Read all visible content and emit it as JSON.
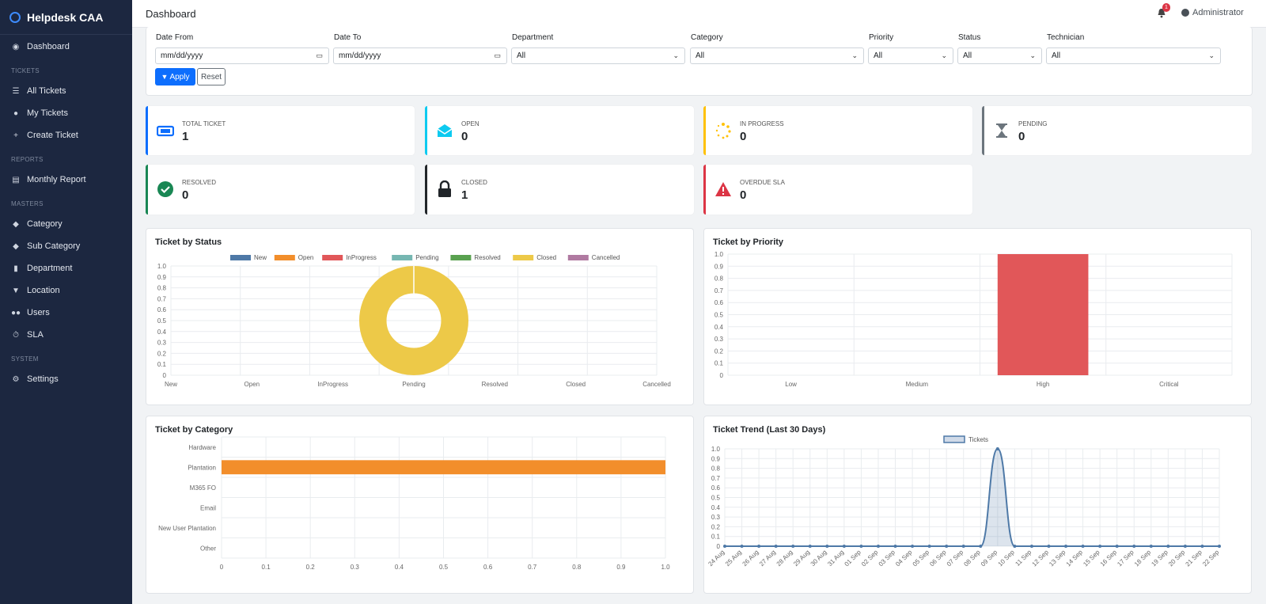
{
  "app": {
    "brand": "Helpdesk CAA"
  },
  "sidebar": {
    "dashboard": "Dashboard",
    "sections": {
      "tickets": "TICKETS",
      "reports": "REPORTS",
      "masters": "MASTERS",
      "system": "SYSTEM"
    },
    "items": {
      "all_tickets": "All Tickets",
      "my_tickets": "My Tickets",
      "create_ticket": "Create Ticket",
      "monthly_report": "Monthly Report",
      "category": "Category",
      "sub_category": "Sub Category",
      "department": "Department",
      "location": "Location",
      "users": "Users",
      "sla": "SLA",
      "settings": "Settings"
    }
  },
  "header": {
    "title": "Dashboard",
    "notif_count": "1",
    "user": "Administrator"
  },
  "filters": {
    "date_from": {
      "label": "Date From",
      "value": "mm/dd/yyyy"
    },
    "date_to": {
      "label": "Date To",
      "value": "mm/dd/yyyy"
    },
    "department": {
      "label": "Department",
      "value": "All"
    },
    "category": {
      "label": "Category",
      "value": "All"
    },
    "priority": {
      "label": "Priority",
      "value": "All"
    },
    "status": {
      "label": "Status",
      "value": "All"
    },
    "technician": {
      "label": "Technician",
      "value": "All"
    },
    "apply": "Apply",
    "reset": "Reset"
  },
  "stats": {
    "total": {
      "label": "TOTAL TICKET",
      "value": "1",
      "color": "#0d6efd"
    },
    "open": {
      "label": "OPEN",
      "value": "0",
      "color": "#0dcaf0"
    },
    "in_progress": {
      "label": "IN PROGRESS",
      "value": "0",
      "color": "#ffc107"
    },
    "pending": {
      "label": "PENDING",
      "value": "0",
      "color": "#6c757d"
    },
    "resolved": {
      "label": "RESOLVED",
      "value": "0",
      "color": "#198754"
    },
    "closed": {
      "label": "CLOSED",
      "value": "1",
      "color": "#212529"
    },
    "overdue": {
      "label": "OVERDUE SLA",
      "value": "0",
      "color": "#dc3545"
    }
  },
  "chart_data": [
    {
      "type": "pie",
      "variant": "doughnut",
      "title": "Ticket by Status",
      "categories": [
        "New",
        "Open",
        "InProgress",
        "Pending",
        "Resolved",
        "Closed",
        "Cancelled"
      ],
      "values": [
        0,
        0,
        0,
        0,
        0,
        1,
        0
      ],
      "colors": [
        "#4e79a7",
        "#f28e2b",
        "#e15759",
        "#76b7b2",
        "#59a14f",
        "#edc948",
        "#b07aa1"
      ],
      "yticks": [
        "1.0",
        "0.9",
        "0.8",
        "0.7",
        "0.6",
        "0.5",
        "0.4",
        "0.3",
        "0.2",
        "0.1",
        "0"
      ],
      "legend_position": "top"
    },
    {
      "type": "bar",
      "title": "Ticket by Priority",
      "categories": [
        "Low",
        "Medium",
        "High",
        "Critical"
      ],
      "values": [
        0,
        0,
        1,
        0
      ],
      "ylim": [
        0,
        1
      ],
      "color": "#e15759",
      "yticks": [
        "1.0",
        "0.9",
        "0.8",
        "0.7",
        "0.6",
        "0.5",
        "0.4",
        "0.3",
        "0.2",
        "0.1",
        "0"
      ]
    },
    {
      "type": "bar",
      "orientation": "horizontal",
      "title": "Ticket by Category",
      "categories": [
        "Hardware",
        "Plantation",
        "M365 FO",
        "Email",
        "New User Plantation",
        "Other"
      ],
      "values": [
        0,
        1,
        0,
        0,
        0,
        0
      ],
      "xlim": [
        0,
        1
      ],
      "color": "#f28e2b",
      "xticks": [
        "0",
        "0.1",
        "0.2",
        "0.3",
        "0.4",
        "0.5",
        "0.6",
        "0.7",
        "0.8",
        "0.9",
        "1.0"
      ]
    },
    {
      "type": "area",
      "title": "Ticket Trend (Last 30 Days)",
      "series": [
        {
          "name": "Tickets",
          "color": "#4e79a7"
        }
      ],
      "x": [
        "24 Aug",
        "25 Aug",
        "26 Aug",
        "27 Aug",
        "28 Aug",
        "29 Aug",
        "30 Aug",
        "31 Aug",
        "01 Sep",
        "02 Sep",
        "03 Sep",
        "04 Sep",
        "05 Sep",
        "06 Sep",
        "07 Sep",
        "08 Sep",
        "09 Sep",
        "10 Sep",
        "11 Sep",
        "12 Sep",
        "13 Sep",
        "14 Sep",
        "15 Sep",
        "16 Sep",
        "17 Sep",
        "18 Sep",
        "19 Sep",
        "20 Sep",
        "21 Sep",
        "22 Sep"
      ],
      "y": [
        0,
        0,
        0,
        0,
        0,
        0,
        0,
        0,
        0,
        0,
        0,
        0,
        0,
        0,
        0,
        0,
        1,
        0,
        0,
        0,
        0,
        0,
        0,
        0,
        0,
        0,
        0,
        0,
        0,
        0
      ],
      "ylim": [
        0,
        1
      ],
      "legend_position": "top",
      "yticks": [
        "1.0",
        "0.9",
        "0.8",
        "0.7",
        "0.6",
        "0.5",
        "0.4",
        "0.3",
        "0.2",
        "0.1",
        "0"
      ]
    }
  ]
}
